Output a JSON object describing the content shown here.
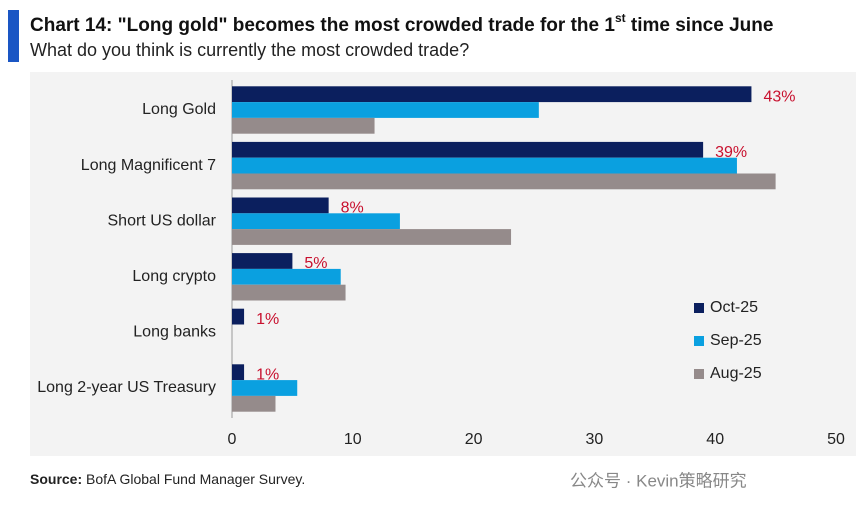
{
  "chart_data": {
    "type": "hbar",
    "title": [
      "Chart 14: \"Long gold\" becomes the most crowded trade for the 1",
      "st",
      " time since June"
    ],
    "subtitle": "What do you think is currently the most crowded trade?",
    "categories": [
      "Long Gold",
      "Long Magnificent 7",
      "Short US dollar",
      "Long crypto",
      "Long banks",
      "Long 2-year US Treasury"
    ],
    "series": [
      {
        "name": "Oct-25",
        "color": "#0b1f5e",
        "values": [
          43,
          39,
          8,
          5,
          1,
          1
        ],
        "value_labels": [
          "43%",
          "39%",
          "8%",
          "5%",
          "1%",
          "1%"
        ]
      },
      {
        "name": "Sep-25",
        "color": "#0aa0e0",
        "values": [
          25.4,
          41.8,
          13.9,
          9.0,
          0,
          5.4
        ]
      },
      {
        "name": "Aug-25",
        "color": "#958b8b",
        "values": [
          11.8,
          45,
          23.1,
          9.4,
          0,
          3.6
        ]
      }
    ],
    "xlim": [
      0,
      50
    ],
    "xticks": [
      0,
      10,
      20,
      30,
      40,
      50
    ],
    "value_label_color": "#c8102e",
    "source_label": "Source:",
    "source_text": " BofA Global Fund Manager Survey.",
    "watermark": "公众号 · Kevin策略研究"
  }
}
